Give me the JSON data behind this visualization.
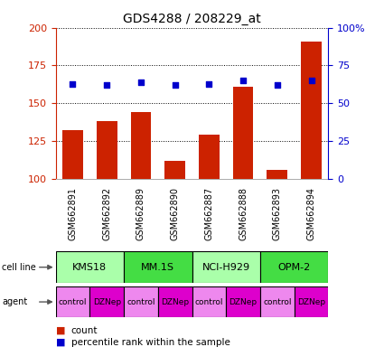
{
  "title": "GDS4288 / 208229_at",
  "samples": [
    "GSM662891",
    "GSM662892",
    "GSM662889",
    "GSM662890",
    "GSM662887",
    "GSM662888",
    "GSM662893",
    "GSM662894"
  ],
  "counts": [
    132,
    138,
    144,
    112,
    129,
    161,
    106,
    191
  ],
  "percentile_ranks": [
    63,
    62,
    64,
    62,
    63,
    65,
    62,
    65
  ],
  "ylim_left": [
    100,
    200
  ],
  "ylim_right": [
    0,
    100
  ],
  "yticks_left": [
    100,
    125,
    150,
    175,
    200
  ],
  "yticks_right": [
    0,
    25,
    50,
    75,
    100
  ],
  "ytick_labels_right": [
    "0",
    "25",
    "50",
    "75",
    "100%"
  ],
  "cell_lines": [
    "KMS18",
    "MM.1S",
    "NCI-H929",
    "OPM-2"
  ],
  "cell_line_spans": [
    [
      0,
      2
    ],
    [
      2,
      4
    ],
    [
      4,
      6
    ],
    [
      6,
      8
    ]
  ],
  "cell_line_colors": [
    "#aaffaa",
    "#44dd44",
    "#aaffaa",
    "#44dd44"
  ],
  "agents": [
    "control",
    "DZNep",
    "control",
    "DZNep",
    "control",
    "DZNep",
    "control",
    "DZNep"
  ],
  "agent_colors": [
    "#ee88ee",
    "#dd00cc",
    "#ee88ee",
    "#dd00cc",
    "#ee88ee",
    "#dd00cc",
    "#ee88ee",
    "#dd00cc"
  ],
  "bar_color": "#cc2200",
  "dot_color": "#0000cc",
  "left_axis_color": "#cc2200",
  "right_axis_color": "#0000cc",
  "background_color": "#ffffff",
  "sample_bg_color": "#cccccc"
}
